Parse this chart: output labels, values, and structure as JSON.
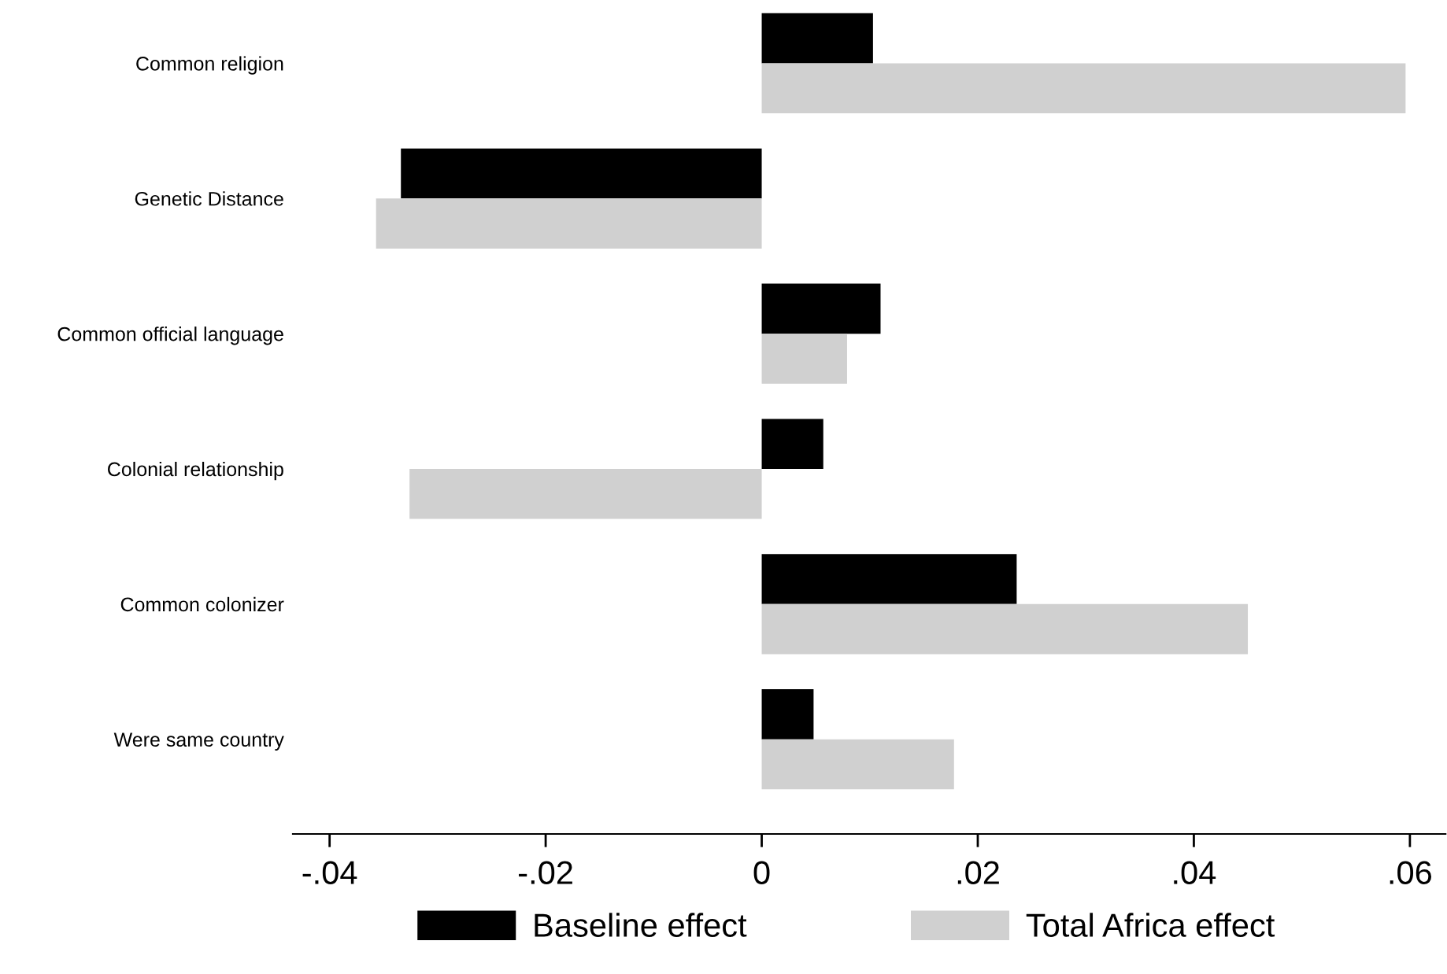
{
  "chart_data": {
    "type": "bar",
    "orientation": "horizontal",
    "categories": [
      "Common religion",
      "Genetic Distance",
      "Common official language",
      "Colonial relationship",
      "Common colonizer",
      "Were same country"
    ],
    "series": [
      {
        "name": "Baseline effect",
        "color": "#000000",
        "values": [
          0.0103,
          -0.0334,
          0.011,
          0.0057,
          0.0236,
          0.0048
        ]
      },
      {
        "name": "Total Africa effect",
        "color": "#d0d0d0",
        "values": [
          0.0596,
          -0.0357,
          0.0079,
          -0.0326,
          0.045,
          0.0178
        ]
      }
    ],
    "xlim": [
      -0.0434,
      0.0633
    ],
    "xticks": [
      {
        "value": -0.04,
        "label": "-.04"
      },
      {
        "value": -0.02,
        "label": "-.02"
      },
      0,
      {
        "value": 0.02,
        "label": ".02"
      },
      {
        "value": 0.04,
        "label": ".04"
      },
      {
        "value": 0.06,
        "label": ".06"
      }
    ],
    "grid": false,
    "legend": "bottom"
  }
}
